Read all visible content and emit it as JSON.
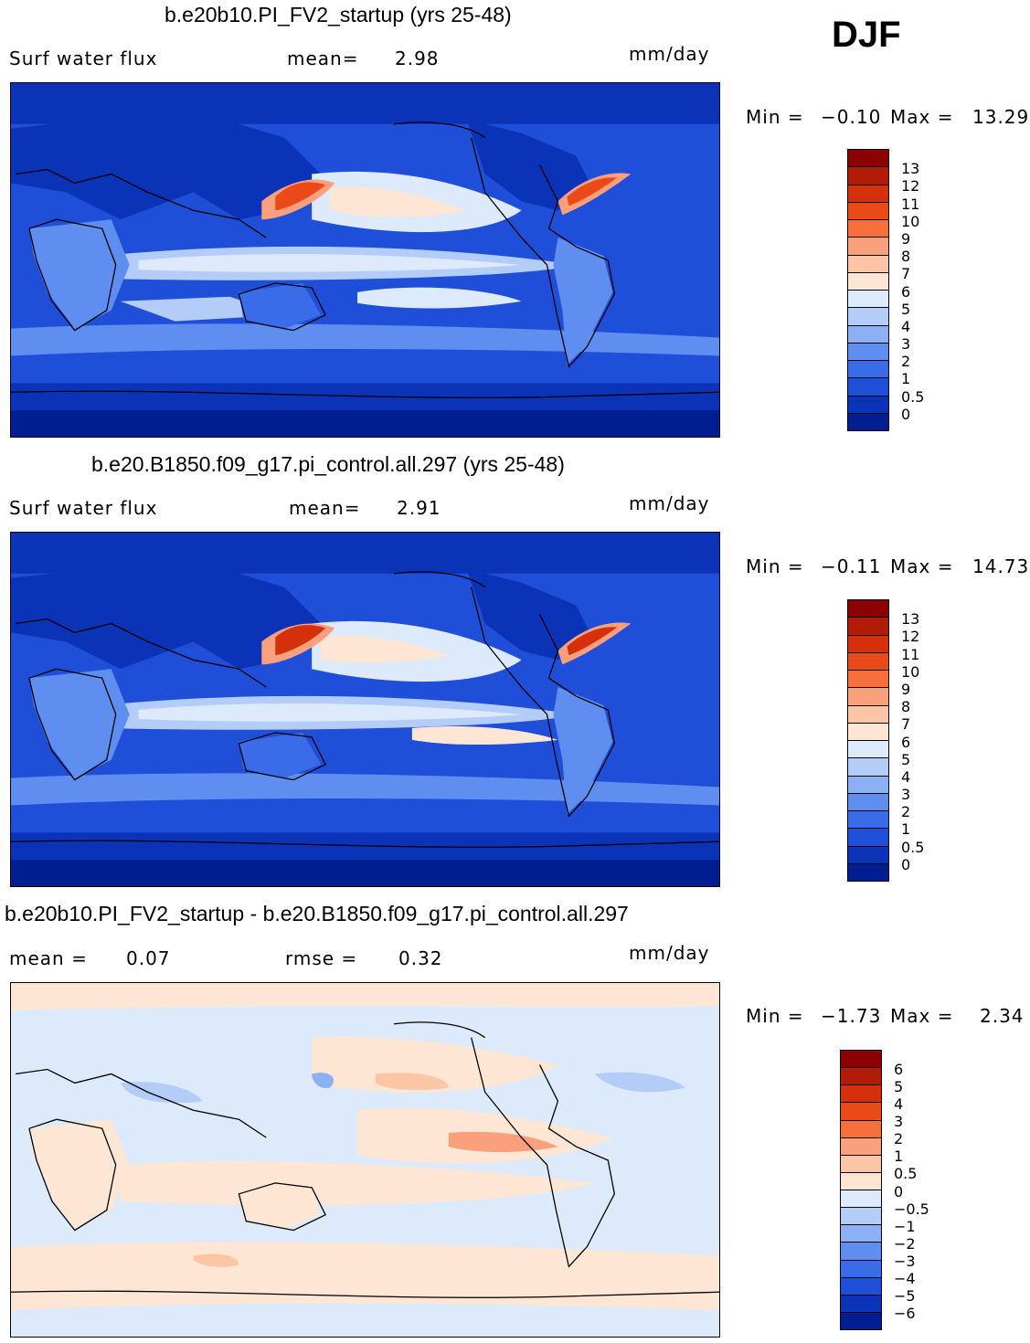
{
  "season": "DJF",
  "panels": [
    {
      "title": "b.e20b10.PI_FV2_startup (yrs 25-48)",
      "left_label": "Surf water flux",
      "mid_label": "mean=",
      "mid_value": "2.98",
      "units": "mm/day",
      "min_label": "Min =",
      "min_value": "−0.10",
      "max_label": "Max =",
      "max_value": "13.29",
      "colorbar_labels": [
        "13",
        "12",
        "11",
        "10",
        "9",
        "8",
        "7",
        "6",
        "5",
        "4",
        "3",
        "2",
        "1",
        "0.5",
        "0"
      ],
      "colorbar_colors": [
        "#8b0000",
        "#b01c06",
        "#d4300c",
        "#ea4a17",
        "#f7703a",
        "#fba07c",
        "#fcc5a6",
        "#fde6d4",
        "#dceafb",
        "#b4cdf8",
        "#8cb0f4",
        "#5e8ef0",
        "#3a6cea",
        "#1f4fd8",
        "#0b33b8",
        "#001e90"
      ],
      "map_style": "mean"
    },
    {
      "title": "b.e20.B1850.f09_g17.pi_control.all.297 (yrs 25-48)",
      "left_label": "Surf water flux",
      "mid_label": "mean=",
      "mid_value": "2.91",
      "units": "mm/day",
      "min_label": "Min =",
      "min_value": "−0.11",
      "max_label": "Max =",
      "max_value": "14.73",
      "colorbar_labels": [
        "13",
        "12",
        "11",
        "10",
        "9",
        "8",
        "7",
        "6",
        "5",
        "4",
        "3",
        "2",
        "1",
        "0.5",
        "0"
      ],
      "colorbar_colors": [
        "#8b0000",
        "#b01c06",
        "#d4300c",
        "#ea4a17",
        "#f7703a",
        "#fba07c",
        "#fcc5a6",
        "#fde6d4",
        "#dceafb",
        "#b4cdf8",
        "#8cb0f4",
        "#5e8ef0",
        "#3a6cea",
        "#1f4fd8",
        "#0b33b8",
        "#001e90"
      ],
      "map_style": "mean"
    },
    {
      "title": "b.e20b10.PI_FV2_startup - b.e20.B1850.f09_g17.pi_control.all.297",
      "left_label": "mean =",
      "left_value": "0.07",
      "mid_label": "rmse =",
      "mid_value": "0.32",
      "units": "mm/day",
      "min_label": "Min =",
      "min_value": "−1.73",
      "max_label": "Max =",
      "max_value": "2.34",
      "colorbar_labels": [
        "6",
        "5",
        "4",
        "3",
        "2",
        "1",
        "0.5",
        "0",
        "−0.5",
        "−1",
        "−2",
        "−3",
        "−4",
        "−5",
        "−6"
      ],
      "colorbar_colors": [
        "#8b0000",
        "#b01c06",
        "#d4300c",
        "#ea4a17",
        "#f7703a",
        "#fba07c",
        "#fcc5a6",
        "#fde6d4",
        "#dceafb",
        "#b4cdf8",
        "#8cb0f4",
        "#5e8ef0",
        "#3a6cea",
        "#1f4fd8",
        "#0b33b8",
        "#001e90"
      ],
      "map_style": "diff"
    }
  ]
}
